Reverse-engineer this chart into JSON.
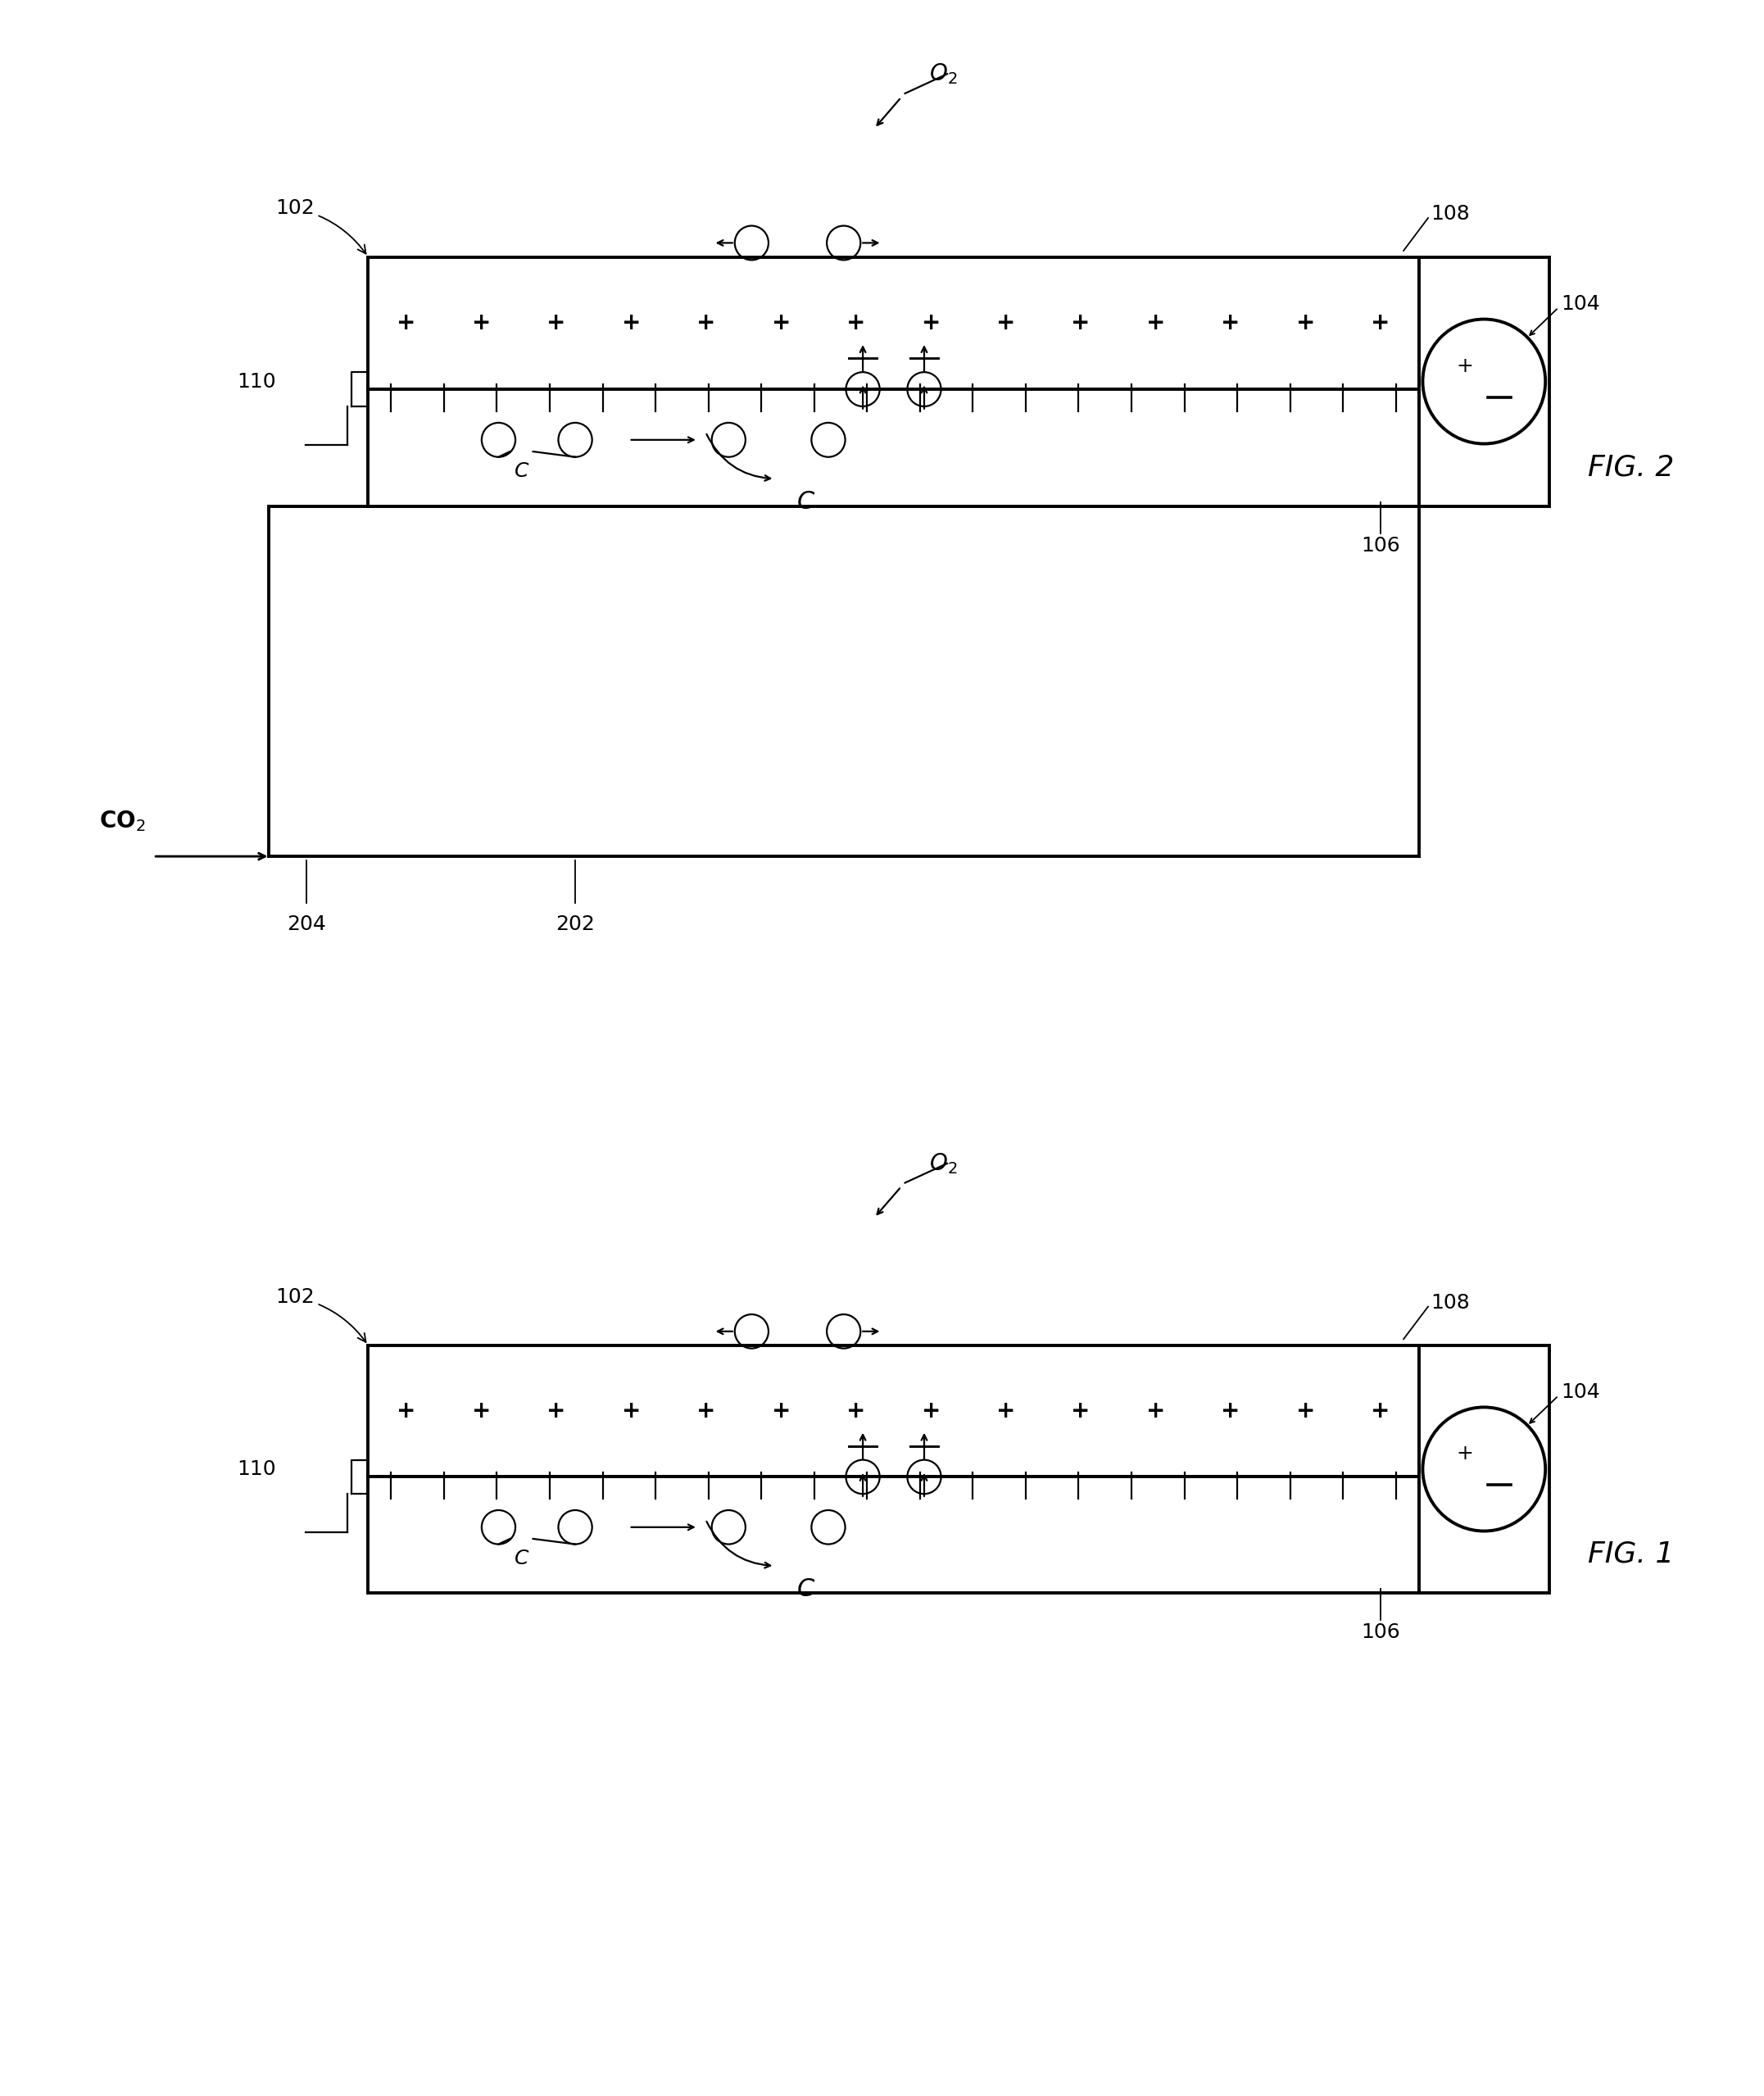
{
  "bg_color": "#ffffff",
  "fig1_label": "FIG. 1",
  "fig2_label": "FIG. 2",
  "ref_102": "102",
  "ref_104": "104",
  "ref_106": "106",
  "ref_108": "108",
  "ref_110": "110",
  "ref_202": "202",
  "ref_204": "204",
  "co2_label": "CO$_2$",
  "o2_label": "O$_2$",
  "c_label": "C",
  "lw_main": 2.8,
  "lw_thin": 1.6,
  "fs_ref": 18,
  "fs_fig": 26,
  "fs_sym": 16,
  "fs_co2": 20
}
